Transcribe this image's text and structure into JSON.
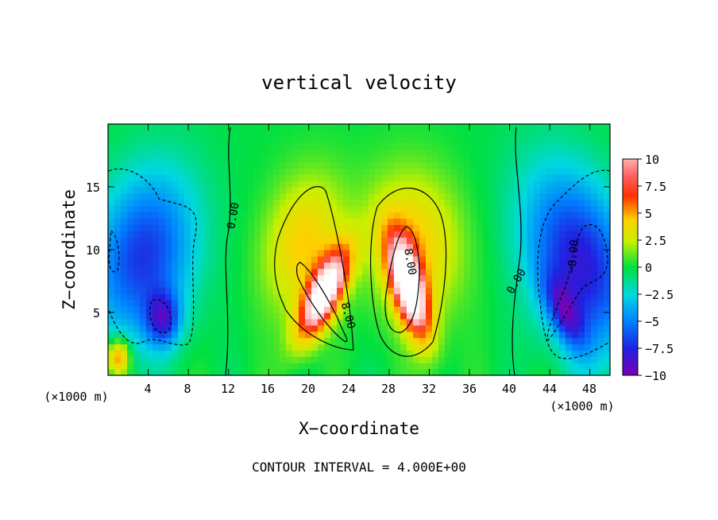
{
  "chart_data": {
    "type": "heatmap",
    "title": "vertical velocity",
    "xlabel": "X−coordinate",
    "ylabel": "Z−coordinate",
    "x_unit_label_left": "(×1000 m)",
    "x_unit_label_right": "(×1000 m)",
    "xlim": [
      0,
      50
    ],
    "ylim": [
      0,
      20
    ],
    "xticks": [
      4,
      8,
      12,
      16,
      20,
      24,
      28,
      32,
      36,
      40,
      44,
      48
    ],
    "xtick_labels": [
      "4",
      "8",
      "12",
      "16",
      "20",
      "24",
      "28",
      "32",
      "36",
      "40",
      "44",
      "48"
    ],
    "yticks": [
      5,
      10,
      15
    ],
    "ytick_labels": [
      "5",
      "10",
      "15"
    ],
    "colorbar": {
      "range": [
        -10,
        10
      ],
      "ticks": [
        10,
        7.5,
        5,
        2.5,
        0,
        -2.5,
        -5,
        -7.5,
        -10
      ],
      "tick_labels": [
        "10",
        "7.5",
        "5",
        "2.5",
        "0",
        "−2.5",
        "−5",
        "−7.5",
        "−10"
      ]
    },
    "contour_interval": "CONTOUR INTERVAL = 4.000E+00",
    "contour_labels": [
      "0.00",
      "0.00",
      "8.00",
      "8.00",
      "−8.00"
    ],
    "features": [
      {
        "x": 21.5,
        "z": 6.5,
        "sx": 1.1,
        "sz": 2.8,
        "rot": -32,
        "amp": 14
      },
      {
        "x": 30.0,
        "z": 7.0,
        "sx": 1.1,
        "sz": 3.0,
        "rot": 20,
        "amp": 14
      },
      {
        "x": 19.5,
        "z": 10.5,
        "sx": 2.6,
        "sz": 3.8,
        "rot": -15,
        "amp": 5
      },
      {
        "x": 30.5,
        "z": 10.5,
        "sx": 3.2,
        "sz": 4.0,
        "rot": 10,
        "amp": 5
      },
      {
        "x": 1.0,
        "z": 1.5,
        "sx": 0.8,
        "sz": 1.0,
        "rot": 0,
        "amp": 7
      },
      {
        "x": 3.5,
        "z": 9.5,
        "sx": 3.5,
        "sz": 5.0,
        "rot": -20,
        "amp": -7
      },
      {
        "x": 5.5,
        "z": 4.5,
        "sx": 1.2,
        "sz": 1.5,
        "rot": 0,
        "amp": -6
      },
      {
        "x": 47.0,
        "z": 9.0,
        "sx": 3.5,
        "sz": 5.5,
        "rot": 25,
        "amp": -8
      },
      {
        "x": 45.5,
        "z": 5.0,
        "sx": 1.0,
        "sz": 2.2,
        "rot": 30,
        "amp": -5
      }
    ]
  }
}
